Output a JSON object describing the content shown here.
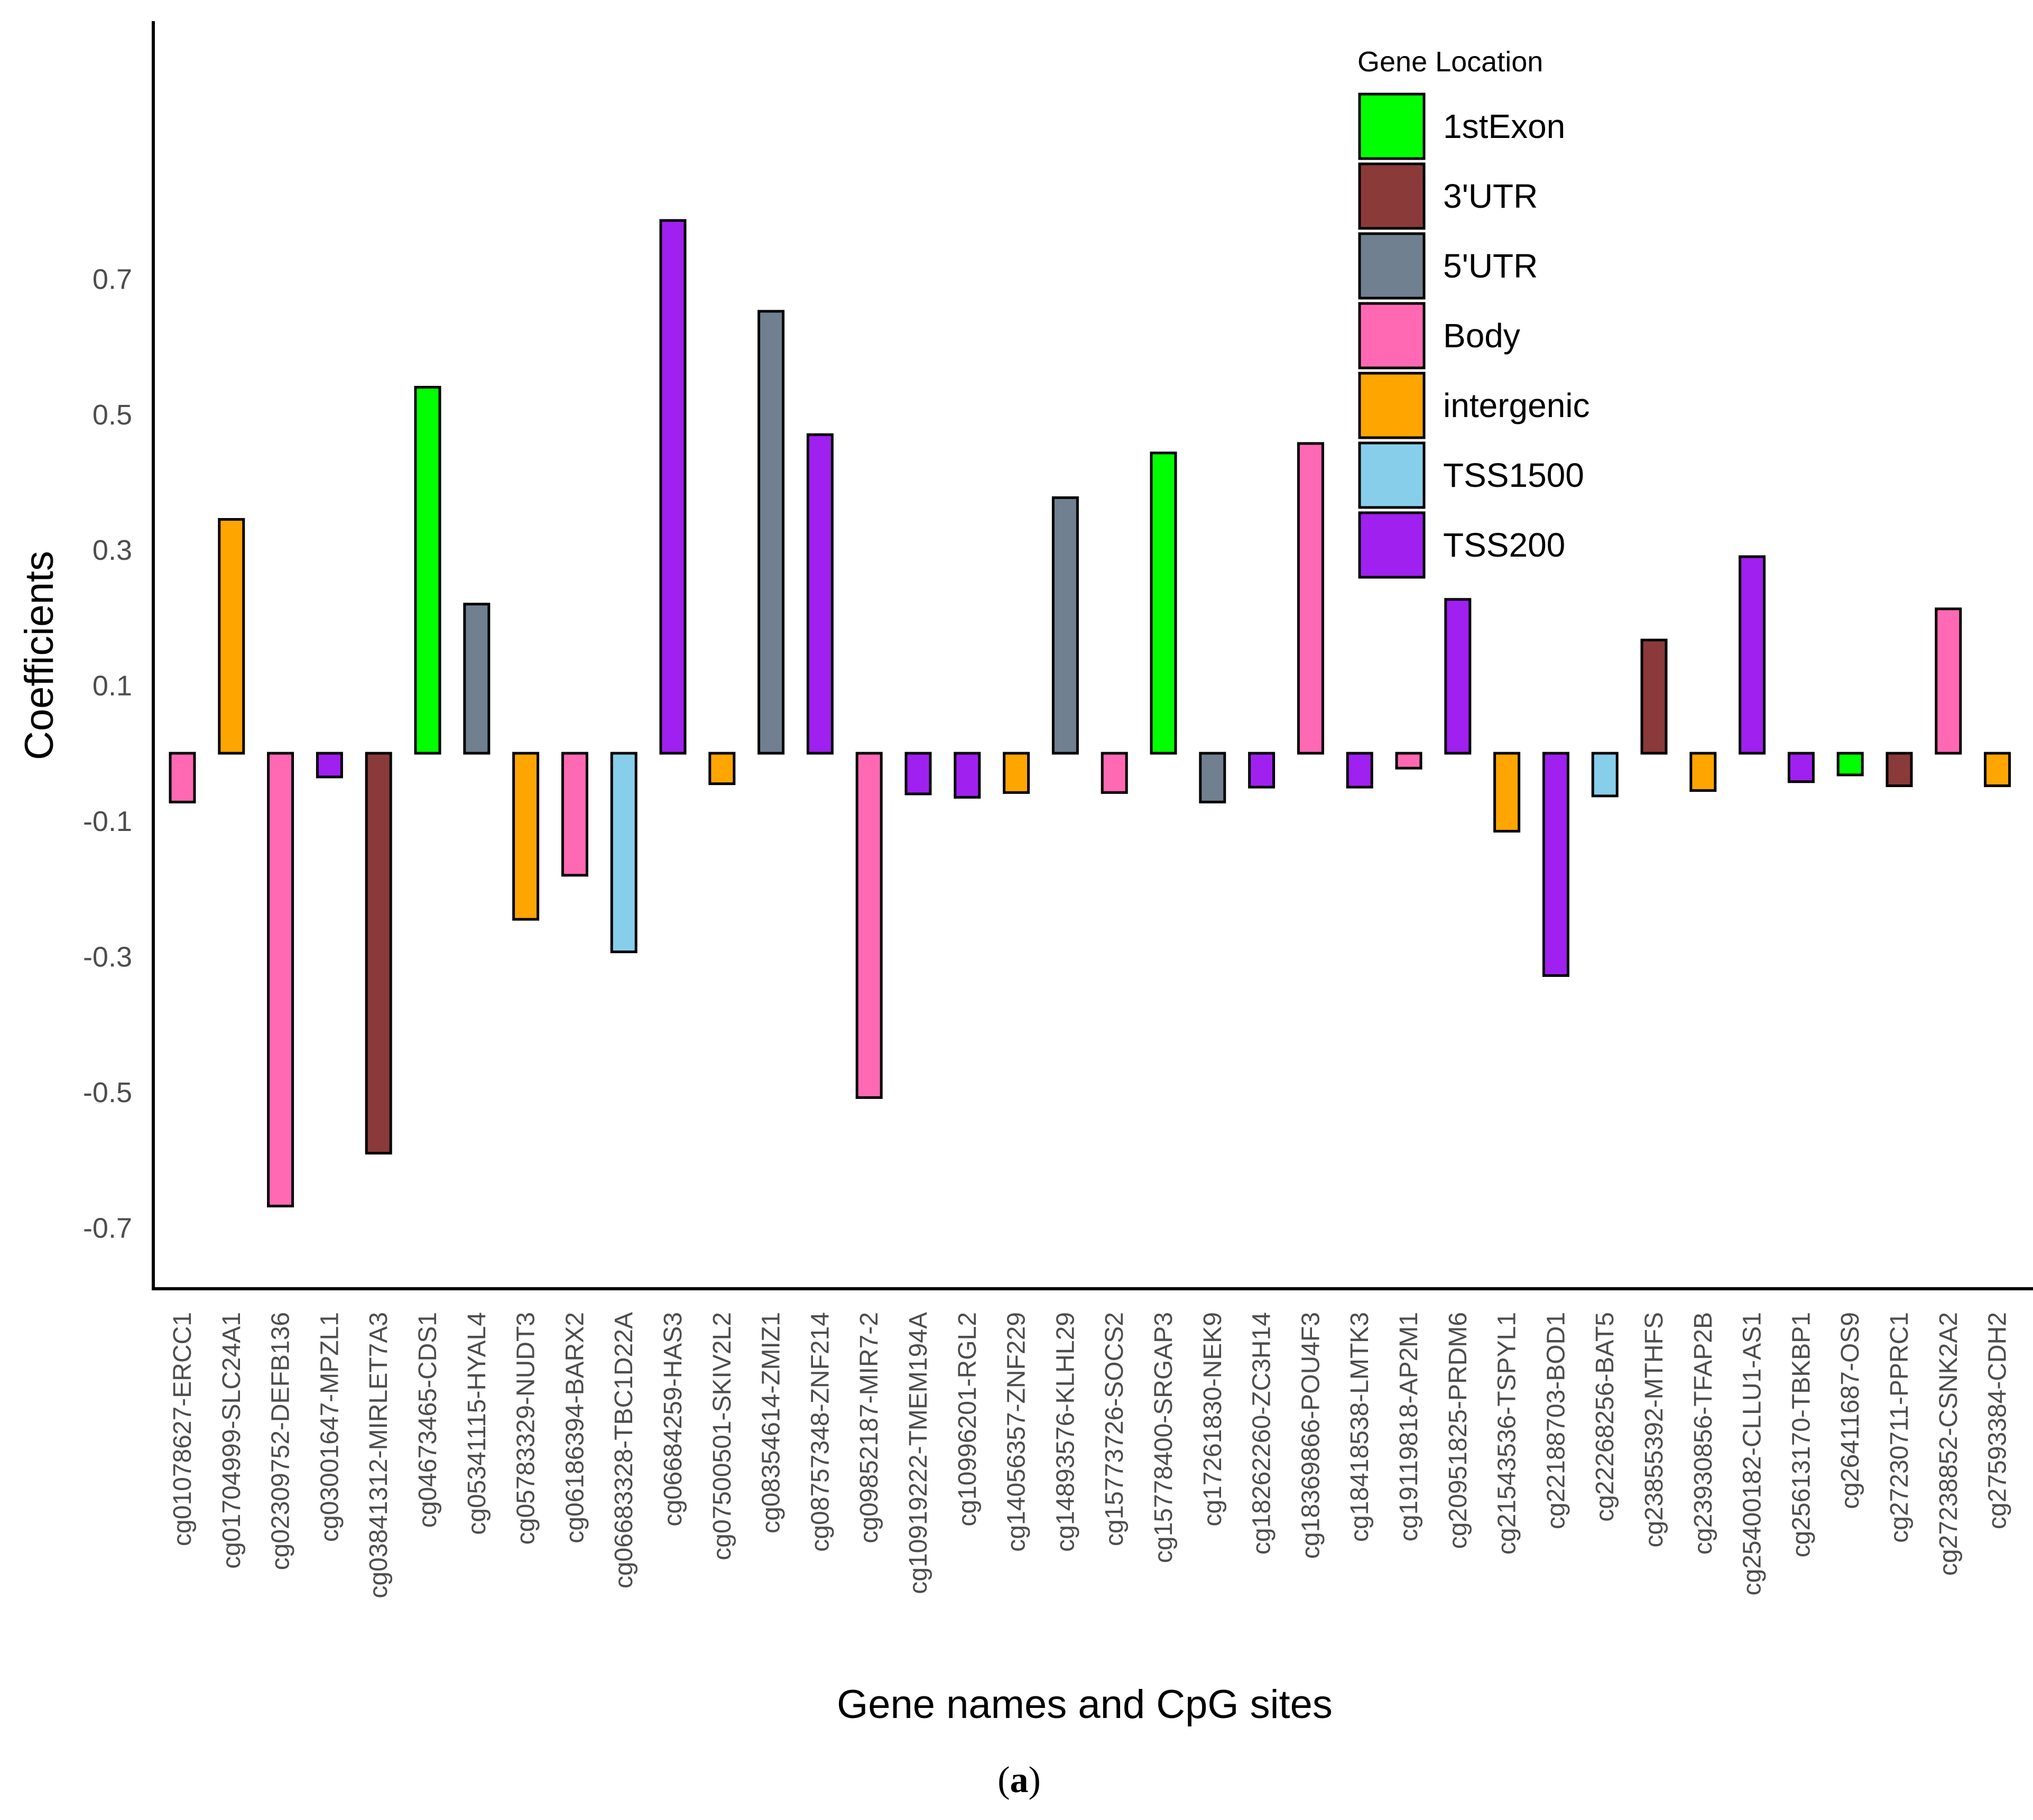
{
  "chart_data": {
    "type": "bar",
    "ylabel": "Coefficients",
    "xlabel": "Gene names and CpG sites",
    "yticks": [
      "0.7",
      "0.5",
      "0.3",
      "0.1",
      "-0.1",
      "-0.3",
      "-0.5",
      "-0.7"
    ],
    "ytick_values": [
      0.7,
      0.5,
      0.3,
      0.1,
      -0.1,
      -0.3,
      -0.5,
      -0.7
    ],
    "ylim": [
      -0.79,
      1.08
    ],
    "legend_title": "Gene Location",
    "legend_position": "top-right",
    "grid": false,
    "locations": [
      {
        "name": "1stExon",
        "color": "#00ff00"
      },
      {
        "name": "3'UTR",
        "color": "#8b3a3a"
      },
      {
        "name": "5'UTR",
        "color": "#708090"
      },
      {
        "name": "Body",
        "color": "#ff69b4"
      },
      {
        "name": "intergenic",
        "color": "#ffa500"
      },
      {
        "name": "TSS1500",
        "color": "#87ceeb"
      },
      {
        "name": "TSS200",
        "color": "#a020f0"
      }
    ],
    "categories": [
      "cg01078627-ERCC1",
      "cg01704999-SLC24A1",
      "cg02309752-DEFB136",
      "cg03001647-MPZL1",
      "cg03841312-MIRLET7A3",
      "cg04673465-CDS1",
      "cg05341115-HYAL4",
      "cg05783329-NUDT3",
      "cg06186394-BARX2",
      "cg06683328-TBC1D22A",
      "cg06684259-HAS3",
      "cg07500501-SKIV2L2",
      "cg08354614-ZMIZ1",
      "cg08757348-ZNF214",
      "cg09852187-MIR7-2",
      "cg10919222-TMEM194A",
      "cg10996201-RGL2",
      "cg14056357-ZNF229",
      "cg14893576-KLHL29",
      "cg15773726-SOCS2",
      "cg15778400-SRGAP3",
      "cg17261830-NEK9",
      "cg18262260-ZC3H14",
      "cg18369866-POU4F3",
      "cg18418538-LMTK3",
      "cg19119818-AP2M1",
      "cg20951825-PRDM6",
      "cg21543536-TSPYL1",
      "cg22188703-BOD1",
      "cg22268256-BAT5",
      "cg23855392-MTHFS",
      "cg23930856-TFAP2B",
      "cg25400182-CLLU1-AS1",
      "cg25613170-TBKBP1",
      "cg26411687-OS9",
      "cg27230711-PPRC1",
      "cg27238852-CSNK2A2",
      "cg27593384-CDH2"
    ],
    "values": [
      -0.072,
      0.345,
      -0.668,
      -0.035,
      -0.59,
      0.54,
      0.22,
      -0.245,
      -0.18,
      -0.293,
      0.786,
      -0.045,
      0.652,
      0.47,
      -0.508,
      -0.06,
      -0.065,
      -0.058,
      0.377,
      -0.058,
      0.443,
      -0.072,
      -0.05,
      0.457,
      -0.05,
      -0.022,
      0.227,
      -0.115,
      -0.328,
      -0.063,
      0.167,
      -0.055,
      0.29,
      -0.042,
      -0.032,
      -0.048,
      0.213,
      -0.048
    ],
    "location_of_each": [
      "Body",
      "intergenic",
      "Body",
      "TSS200",
      "3'UTR",
      "1stExon",
      "5'UTR",
      "intergenic",
      "Body",
      "TSS1500",
      "TSS200",
      "intergenic",
      "5'UTR",
      "TSS200",
      "Body",
      "TSS200",
      "TSS200",
      "intergenic",
      "5'UTR",
      "Body",
      "1stExon",
      "5'UTR",
      "TSS200",
      "Body",
      "TSS200",
      "Body",
      "TSS200",
      "intergenic",
      "TSS200",
      "TSS1500",
      "3'UTR",
      "intergenic",
      "TSS200",
      "TSS200",
      "1stExon",
      "3'UTR",
      "Body",
      "intergenic"
    ]
  },
  "caption": {
    "open": "(",
    "letter": "a",
    "close": ")"
  }
}
